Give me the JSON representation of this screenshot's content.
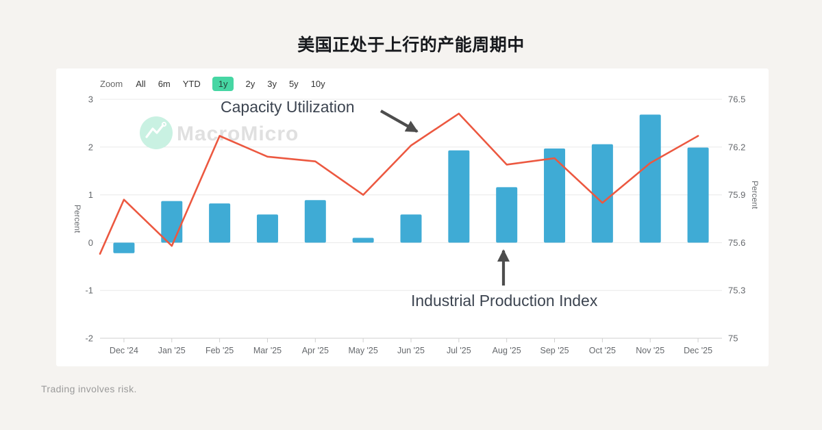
{
  "page": {
    "title": "美国正处于上行的产能周期中",
    "disclaimer": "Trading involves risk."
  },
  "toolbar": {
    "zoom_label": "Zoom",
    "buttons": [
      "All",
      "6m",
      "YTD",
      "1y",
      "2y",
      "3y",
      "5y",
      "10y"
    ],
    "selected": "1y",
    "selected_color": "#46d6a3"
  },
  "watermark": {
    "brand": "MacroMicro"
  },
  "annotations": {
    "line_label": "Capacity Utilization",
    "bar_label": "Industrial Production Index"
  },
  "chart_data": {
    "type": "bar",
    "subtype": "column + line combo",
    "categories": [
      "Dec '24",
      "Jan '25",
      "Feb '25",
      "Mar '25",
      "Apr '25",
      "May '25",
      "Jun '25",
      "Jul '25",
      "Aug '25",
      "Sep '25",
      "Oct '25",
      "Nov '25",
      "Dec '25"
    ],
    "series": [
      {
        "name": "Industrial Production Index",
        "type": "bar",
        "axis": "left",
        "color": "#3fabd5",
        "values": [
          -0.22,
          0.87,
          0.82,
          0.59,
          0.89,
          0.1,
          0.59,
          1.93,
          1.16,
          1.97,
          2.06,
          2.68,
          1.99
        ]
      },
      {
        "name": "Capacity Utilization",
        "type": "line",
        "axis": "right",
        "color": "#ec5840",
        "pre_edge_value": 75.53,
        "values": [
          75.87,
          75.58,
          76.27,
          76.14,
          76.11,
          75.9,
          76.21,
          76.41,
          76.09,
          76.13,
          75.85,
          76.1,
          76.27
        ]
      }
    ],
    "left_axis": {
      "title": "Percent",
      "min": -2,
      "max": 3,
      "ticks": [
        3,
        2,
        1,
        0,
        -1,
        -2
      ]
    },
    "right_axis": {
      "title": "Percent",
      "min": 75,
      "max": 76.5,
      "ticks": [
        "76.5",
        "76.2",
        "75.9",
        "75.6",
        "75.3",
        "75"
      ]
    },
    "grid": true,
    "legend_position": "none"
  }
}
